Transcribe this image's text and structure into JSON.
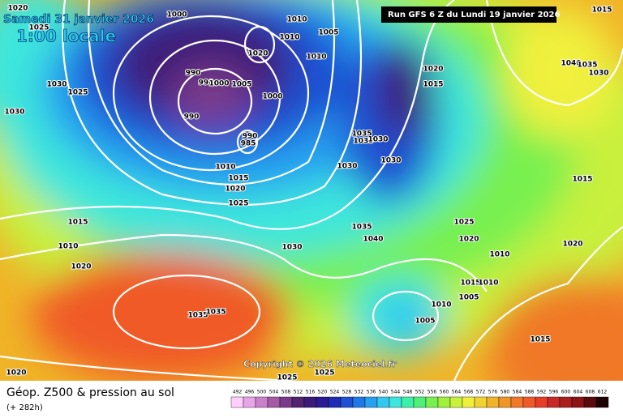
{
  "header": {
    "date": "Samedi 31 janvier 2026",
    "local_time": "1:00 locale",
    "run": "Run GFS 6 Z du Lundi 19 janvier 2026"
  },
  "copyright": "Copyright © 2026 Meteociel.fr",
  "footer": {
    "title": "Géop. Z500 & pression au sol",
    "lead": "(+ 282h)"
  },
  "isobar_labels": [
    1020,
    1025,
    1000,
    1010,
    1005,
    1010,
    1020,
    1010,
    1015,
    1030,
    1025,
    1030,
    990,
    990,
    1000,
    1005,
    1000,
    990,
    990,
    985,
    1020,
    1015,
    1040,
    1035,
    1030,
    1035,
    1035,
    1030,
    1030,
    1030,
    1010,
    1015,
    1020,
    1025,
    1015,
    1015,
    1010,
    1020,
    1030,
    1035,
    1040,
    1025,
    1020,
    1010,
    1020,
    1015,
    1010,
    1005,
    1010,
    1005,
    1035,
    1035,
    1015,
    1020,
    1025,
    1025
  ],
  "legend": {
    "ticks": [
      492,
      496,
      500,
      504,
      508,
      512,
      516,
      520,
      524,
      528,
      532,
      536,
      540,
      544,
      548,
      552,
      556,
      560,
      564,
      568,
      572,
      576,
      580,
      584,
      588,
      592,
      596,
      600,
      604,
      608,
      612
    ],
    "colors": [
      "#ffcfff",
      "#e6a5e6",
      "#cc7fcc",
      "#a45aa4",
      "#7a3a8a",
      "#50246e",
      "#3c1a78",
      "#2a1a96",
      "#1e2db4",
      "#1e50d2",
      "#1e78e6",
      "#28a0f0",
      "#32c8f0",
      "#3ce6dc",
      "#3cf0aa",
      "#50f078",
      "#78f050",
      "#a0f03c",
      "#c8f03c",
      "#f0f03c",
      "#f0d232",
      "#f0b428",
      "#f09628",
      "#f07828",
      "#f05a28",
      "#e63c28",
      "#c82828",
      "#aa1e1e",
      "#8c1414",
      "#5a0a0a",
      "#1e0000"
    ]
  }
}
